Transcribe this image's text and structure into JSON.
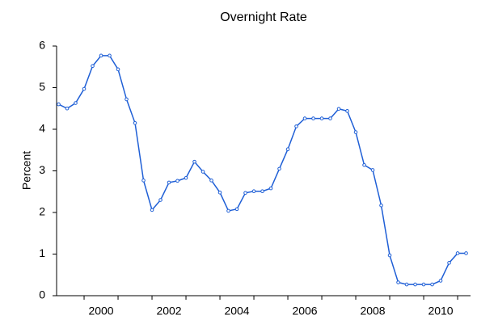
{
  "chart_data": {
    "type": "line",
    "title": "Overnight Rate",
    "y_label": "Percent",
    "x": [
      1999.25,
      1999.5,
      1999.75,
      2000,
      2000.25,
      2000.5,
      2000.75,
      2001,
      2001.25,
      2001.5,
      2001.75,
      2002,
      2002.25,
      2002.5,
      2002.75,
      2003,
      2003.25,
      2003.5,
      2003.75,
      2004,
      2004.25,
      2004.5,
      2004.75,
      2005,
      2005.25,
      2005.5,
      2005.75,
      2006,
      2006.25,
      2006.5,
      2006.75,
      2007,
      2007.25,
      2007.5,
      2007.75,
      2008,
      2008.25,
      2008.5,
      2008.75,
      2009,
      2009.25,
      2009.5,
      2009.75,
      2010,
      2010.25,
      2010.5,
      2010.75,
      2011,
      2011.25
    ],
    "series": [
      {
        "name": "Overnight Rate",
        "color": "#1f5fd6",
        "values": [
          4.6,
          4.5,
          4.63,
          4.97,
          5.52,
          5.77,
          5.77,
          5.44,
          4.72,
          4.15,
          2.77,
          2.06,
          2.3,
          2.72,
          2.76,
          2.83,
          3.22,
          2.98,
          2.77,
          2.48,
          2.04,
          2.08,
          2.47,
          2.51,
          2.51,
          2.58,
          3.05,
          3.52,
          4.07,
          4.26,
          4.26,
          4.26,
          4.26,
          4.49,
          4.44,
          3.93,
          3.14,
          3.02,
          2.17,
          0.97,
          0.32,
          0.27,
          0.27,
          0.27,
          0.27,
          0.36,
          0.79,
          1.02,
          1.02
        ]
      }
    ],
    "xlim": [
      1999.19,
      2011.38
    ],
    "xticks": [
      {
        "value": 2000.5,
        "label": "2000"
      },
      {
        "value": 2002.5,
        "label": "2002"
      },
      {
        "value": 2004.5,
        "label": "2004"
      },
      {
        "value": 2006.5,
        "label": "2006"
      },
      {
        "value": 2008.5,
        "label": "2008"
      },
      {
        "value": 2010.5,
        "label": "2010"
      }
    ],
    "xminorticks": [
      2000,
      2001,
      2002,
      2003,
      2004,
      2005,
      2006,
      2007,
      2008,
      2009,
      2010,
      2011
    ],
    "ylim": [
      0,
      6
    ],
    "yticks": [
      0,
      1,
      2,
      3,
      4,
      5,
      6
    ],
    "grid": false
  }
}
